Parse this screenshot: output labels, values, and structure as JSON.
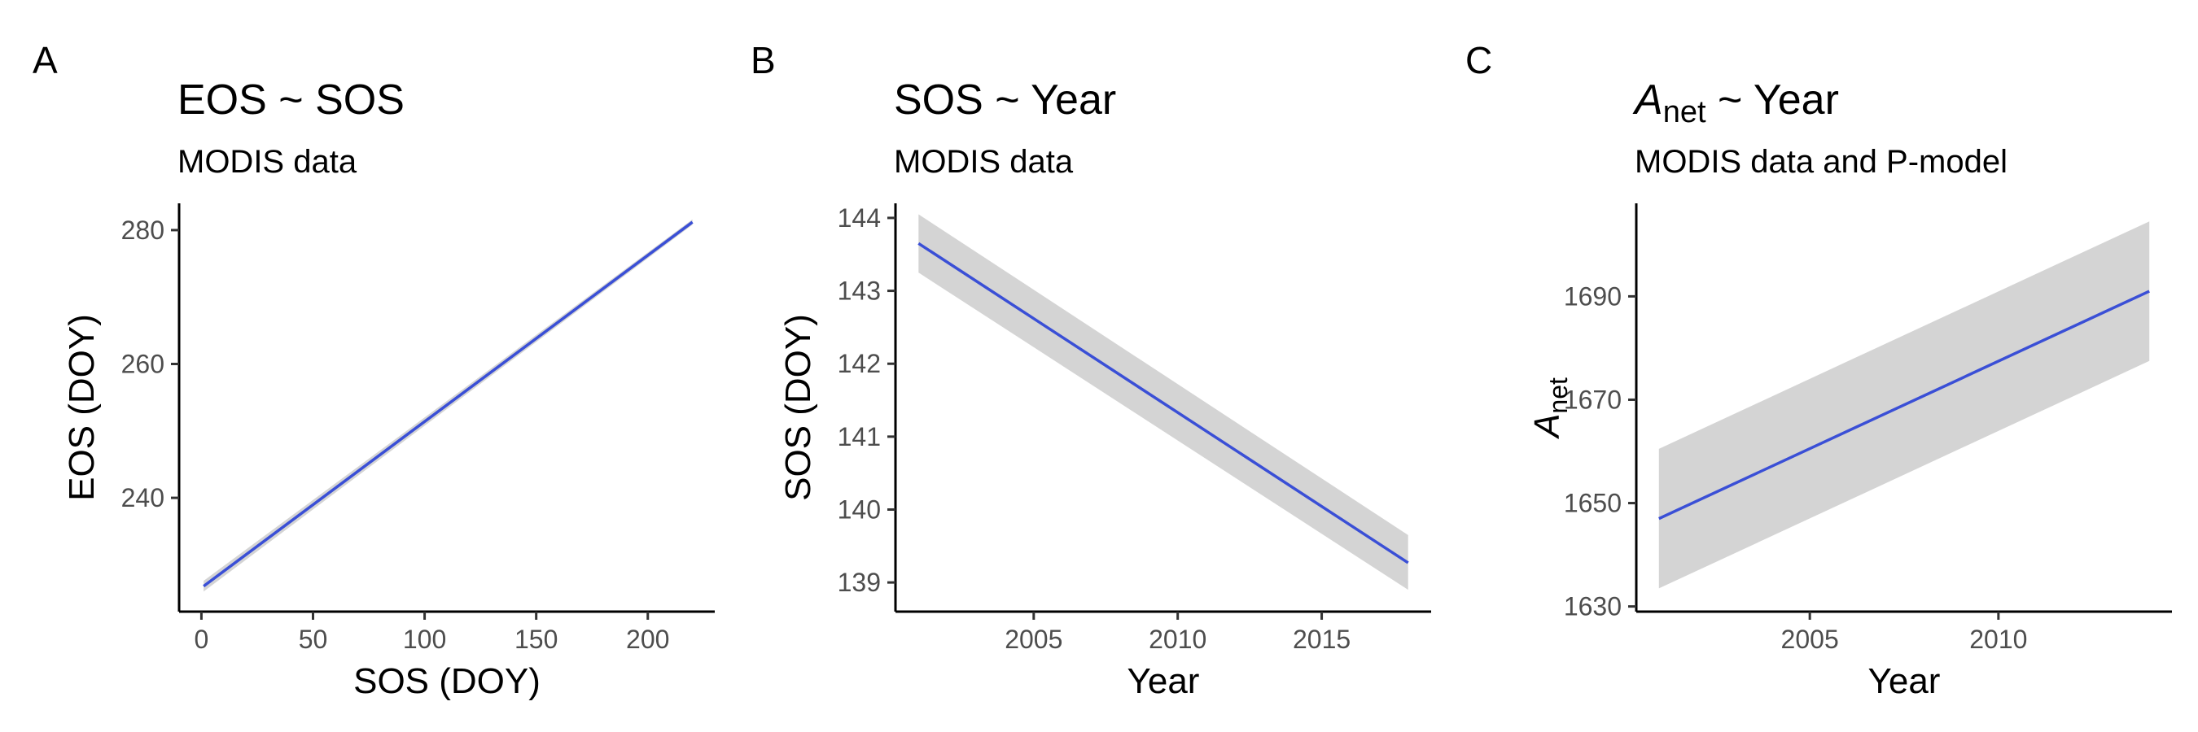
{
  "colors": {
    "line": "#3a4fd6",
    "ribbon": "#cccccc",
    "axis": "#000000",
    "tick_text": "#4d4d4d"
  },
  "chart_data": [
    {
      "panel_label": "A",
      "type": "line",
      "title": "EOS ~ SOS",
      "title_main": "EOS ~ SOS",
      "title_sub": "",
      "title_rest": "",
      "subtitle": "MODIS data",
      "xlabel": "SOS (DOY)",
      "ylabel": "EOS (DOY)",
      "ylabel_sub": "",
      "xlim": [
        -10,
        230
      ],
      "ylim": [
        223,
        284
      ],
      "xticks": [
        0,
        50,
        100,
        150,
        200
      ],
      "yticks": [
        240,
        260,
        280
      ],
      "x": [
        1,
        220
      ],
      "y": [
        226.8,
        281.2
      ],
      "ribbon_lower": [
        226.0,
        280.8
      ],
      "ribbon_upper": [
        227.6,
        281.6
      ],
      "grid": false,
      "legend": "none"
    },
    {
      "panel_label": "B",
      "type": "line",
      "title": "SOS ~ Year",
      "title_main": "SOS ~ Year",
      "title_sub": "",
      "title_rest": "",
      "subtitle": "MODIS data",
      "xlabel": "Year",
      "ylabel": "SOS (DOY)",
      "ylabel_sub": "",
      "xlim": [
        2000.2,
        2018.8
      ],
      "ylim": [
        138.6,
        144.2
      ],
      "xticks": [
        2005,
        2010,
        2015
      ],
      "yticks": [
        139,
        140,
        141,
        142,
        143,
        144
      ],
      "x": [
        2001,
        2018
      ],
      "y": [
        143.65,
        139.27
      ],
      "ribbon_lower": [
        143.25,
        138.9
      ],
      "ribbon_upper": [
        144.05,
        139.65
      ],
      "grid": false,
      "legend": "none"
    },
    {
      "panel_label": "C",
      "type": "line",
      "title": "A_net ~ Year",
      "title_main": "A",
      "title_sub": "net",
      "title_rest": " ~ Year",
      "subtitle": "MODIS data and P-model",
      "xlabel": "Year",
      "ylabel": "A",
      "ylabel_sub": "net",
      "xlim": [
        2000.4,
        2014.6
      ],
      "ylim": [
        1629,
        1708
      ],
      "xticks": [
        2005,
        2010
      ],
      "yticks": [
        1630,
        1650,
        1670,
        1690
      ],
      "x": [
        2001,
        2014
      ],
      "y": [
        1647,
        1691
      ],
      "ribbon_lower": [
        1633.5,
        1677.5
      ],
      "ribbon_upper": [
        1660.5,
        1704.5
      ],
      "grid": false,
      "legend": "none"
    }
  ]
}
